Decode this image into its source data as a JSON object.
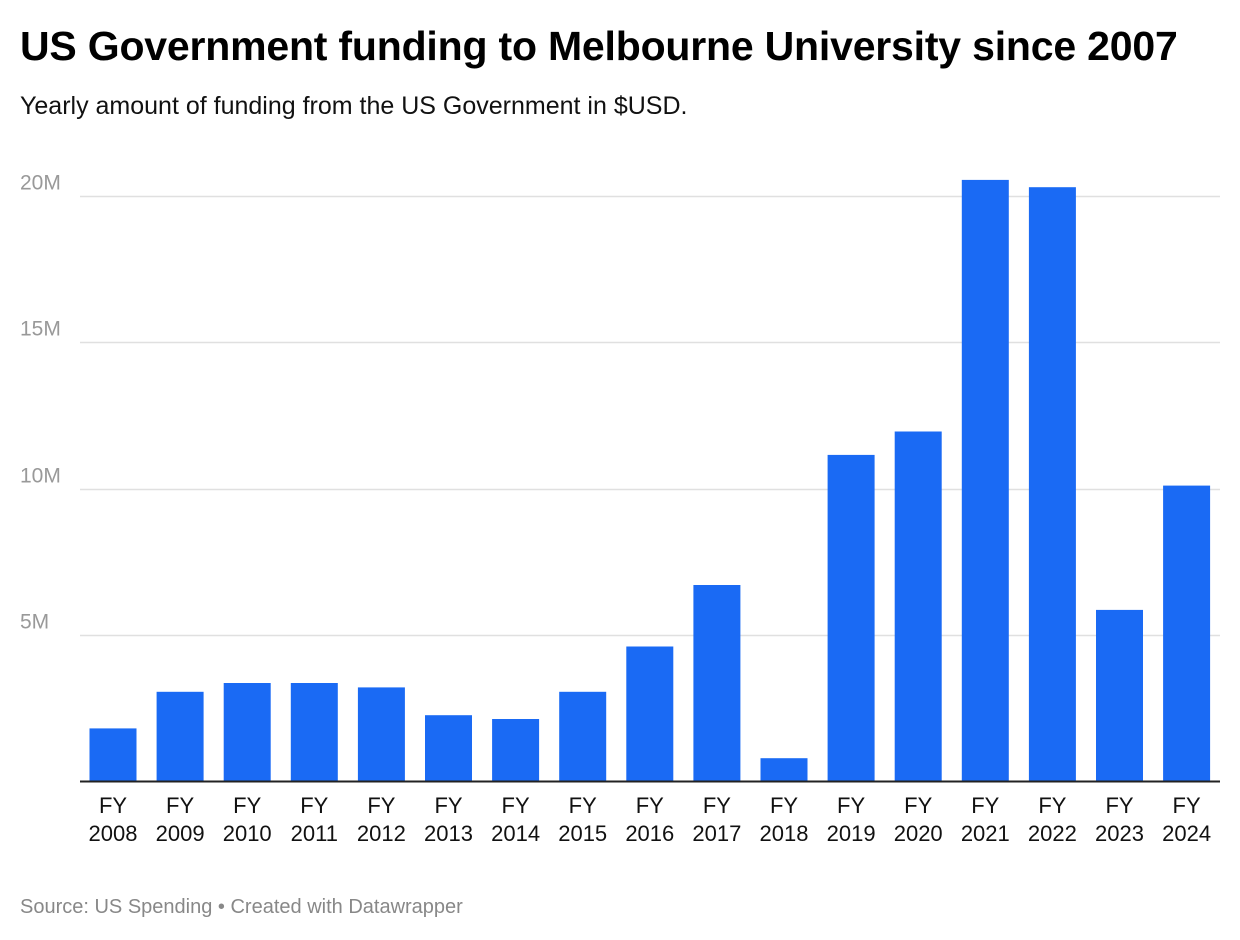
{
  "header": {
    "title": "US Government funding to Melbourne University since 2007",
    "subtitle": "Yearly amount of funding from the US Government in $USD."
  },
  "footer": {
    "source": "Source: US Spending",
    "separator": "•",
    "credit": "Created with Datawrapper"
  },
  "colors": {
    "bar": "#1a6af4",
    "grid": "#e0e0e0",
    "axis": "#222222",
    "tick_text": "#999999",
    "category_text": "#111111"
  },
  "chart_data": {
    "type": "bar",
    "title": "US Government funding to Melbourne University since 2007",
    "subtitle": "Yearly amount of funding from the US Government in $USD.",
    "xlabel": "",
    "ylabel": "",
    "categories": [
      [
        "FY",
        "2008"
      ],
      [
        "FY",
        "2009"
      ],
      [
        "FY",
        "2010"
      ],
      [
        "FY",
        "2011"
      ],
      [
        "FY",
        "2012"
      ],
      [
        "FY",
        "2013"
      ],
      [
        "FY",
        "2014"
      ],
      [
        "FY",
        "2015"
      ],
      [
        "FY",
        "2016"
      ],
      [
        "FY",
        "2017"
      ],
      [
        "FY",
        "2018"
      ],
      [
        "FY",
        "2019"
      ],
      [
        "FY",
        "2020"
      ],
      [
        "FY",
        "2021"
      ],
      [
        "FY",
        "2022"
      ],
      [
        "FY",
        "2023"
      ],
      [
        "FY",
        "2024"
      ]
    ],
    "values": [
      1800000,
      3050000,
      3350000,
      3350000,
      3200000,
      2250000,
      2120000,
      3050000,
      4600000,
      6700000,
      780000,
      11150000,
      11950000,
      20550000,
      20300000,
      5850000,
      10100000
    ],
    "ylim": [
      0,
      20000000
    ],
    "yticks": [
      {
        "value": 5000000,
        "label": "5M"
      },
      {
        "value": 10000000,
        "label": "10M"
      },
      {
        "value": 15000000,
        "label": "15M"
      },
      {
        "value": 20000000,
        "label": "20M"
      }
    ],
    "grid": true,
    "legend": "none"
  }
}
